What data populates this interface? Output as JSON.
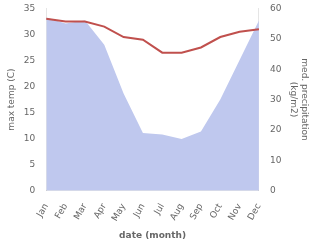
{
  "chart_data": {
    "type": "line",
    "xlabel": "date (month)",
    "ylabel": "max temp (C)",
    "y2label": "med. precipitation\n(kg/m2)",
    "categories": [
      "Jan",
      "Feb",
      "Mar",
      "Apr",
      "May",
      "Jun",
      "Jul",
      "Aug",
      "Sep",
      "Oct",
      "Nov",
      "Dec"
    ],
    "series": [
      {
        "type": "area",
        "axis": "y2",
        "color": "#bfc8ee",
        "values": [
          57.0,
          55.0,
          56.0,
          48.0,
          32.0,
          19.0,
          18.5,
          17.0,
          19.5,
          30.0,
          43.0,
          56.0
        ]
      },
      {
        "type": "line",
        "color": "#c0504d",
        "values": [
          33.0,
          32.5,
          32.5,
          31.5,
          29.5,
          29.0,
          26.5,
          26.5,
          27.5,
          29.5,
          30.5,
          31.0
        ]
      }
    ],
    "ylim": [
      0,
      35
    ],
    "yticks": [
      0,
      5,
      10,
      15,
      20,
      25,
      30,
      35
    ],
    "y2lim": [
      0,
      60
    ],
    "y2ticks": [
      0,
      10,
      20,
      30,
      40,
      50,
      60
    ],
    "grid": false
  }
}
